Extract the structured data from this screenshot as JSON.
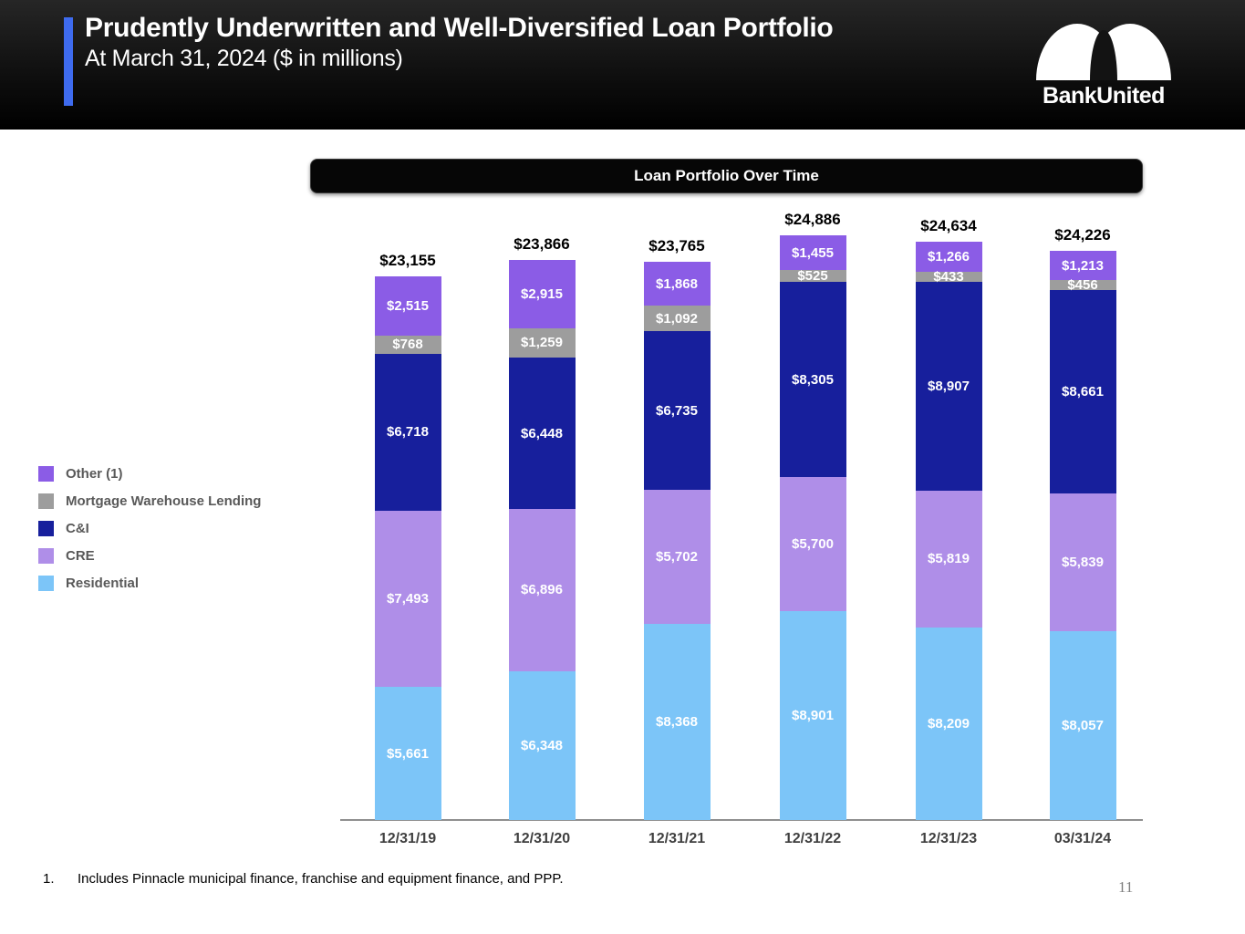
{
  "header": {
    "title": "Prudently Underwritten and Well-Diversified Loan Portfolio",
    "subtitle": "At March 31, 2024 ($ in millions)",
    "logo_text": "BankUnited"
  },
  "chart_title": "Loan Portfolio Over Time",
  "colors": {
    "accent_blue": "#3E6BEF",
    "residential": "#7CC5F8",
    "cre": "#AF8EE8",
    "ci": "#171F9C",
    "mortgage_warehouse": "#9D9D9D",
    "other": "#8B5CE6"
  },
  "chart_data": {
    "type": "bar",
    "stacked": true,
    "title": "Loan Portfolio Over Time",
    "unit": "$ in millions",
    "categories": [
      "12/31/19",
      "12/31/20",
      "12/31/21",
      "12/31/22",
      "12/31/23",
      "03/31/24"
    ],
    "series": [
      {
        "name": "Residential",
        "color": "#7CC5F8",
        "values": [
          5661,
          6348,
          8368,
          8901,
          8209,
          8057
        ]
      },
      {
        "name": "CRE",
        "color": "#AF8EE8",
        "values": [
          7493,
          6896,
          5702,
          5700,
          5819,
          5839
        ]
      },
      {
        "name": "C&I",
        "color": "#171F9C",
        "values": [
          6718,
          6448,
          6735,
          8305,
          8907,
          8661
        ]
      },
      {
        "name": "Mortgage Warehouse Lending",
        "color": "#9D9D9D",
        "values": [
          768,
          1259,
          1092,
          525,
          433,
          456
        ]
      },
      {
        "name": "Other (1)",
        "color": "#8B5CE6",
        "values": [
          2515,
          2915,
          1868,
          1455,
          1266,
          1213
        ]
      }
    ],
    "totals": [
      23155,
      23866,
      23765,
      24886,
      24634,
      24226
    ],
    "value_prefix": "$",
    "legend_position": "left",
    "grid": false
  },
  "footnote": {
    "number": "1.",
    "text": "Includes Pinnacle municipal finance, franchise and equipment finance, and PPP."
  },
  "page_number": "11"
}
